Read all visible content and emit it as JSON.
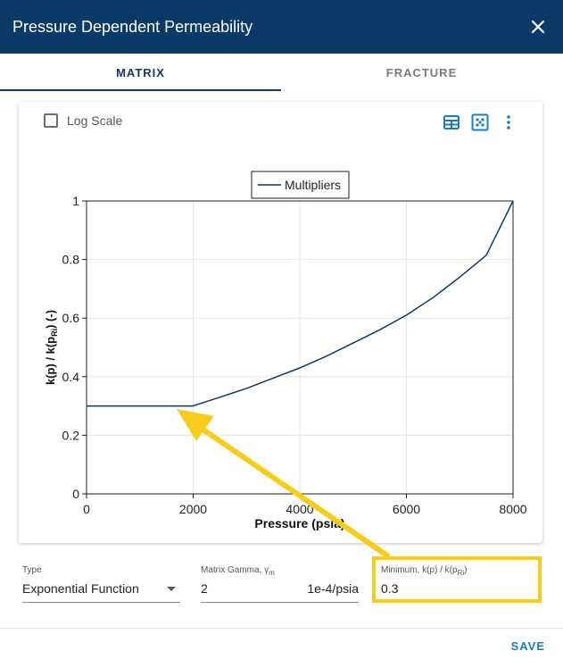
{
  "dialog": {
    "title": "Pressure Dependent Permeability"
  },
  "tabs": [
    {
      "label": "MATRIX"
    },
    {
      "label": "FRACTURE"
    }
  ],
  "toolbar": {
    "log_scale_label": "Log Scale"
  },
  "chart_data": {
    "type": "line",
    "legend": "Multipliers",
    "legend_position": "top-center",
    "xlabel": "Pressure (psia)",
    "ylabel_parts": {
      "main": "k(p) / k(p",
      "sub": "Ri",
      "tail": ") (-)"
    },
    "xlim": [
      0,
      8000
    ],
    "ylim": [
      0,
      1
    ],
    "x_ticks": [
      "0",
      "2000",
      "4000",
      "6000",
      "8000"
    ],
    "y_ticks": [
      "0",
      "0.2",
      "0.4",
      "0.6",
      "0.8",
      "1"
    ],
    "grid": true,
    "series": [
      {
        "color": "#0c3a66",
        "x": [
          0,
          1000,
          1990,
          2500,
          3000,
          3500,
          4000,
          4500,
          5000,
          5500,
          6000,
          6500,
          7000,
          7500,
          8000
        ],
        "y": [
          0.3,
          0.3,
          0.3,
          0.33,
          0.36,
          0.395,
          0.43,
          0.47,
          0.515,
          0.56,
          0.61,
          0.67,
          0.74,
          0.815,
          1.0
        ]
      }
    ]
  },
  "form": {
    "type": {
      "label": "Type",
      "value": "Exponential Function"
    },
    "gamma": {
      "label_main": "Matrix Gamma, γ",
      "label_sub": "m",
      "value": "2",
      "unit": "1e-4/psia"
    },
    "minimum": {
      "label_main": "Minimum, k(p) / k(p",
      "label_sub": "Ri",
      "label_tail": ")",
      "value": "0.3"
    }
  },
  "actions": {
    "save_label": "SAVE"
  },
  "colors": {
    "header": "#0c3a66",
    "accent": "#1a7bc4",
    "highlight": "#f9cc1a"
  }
}
